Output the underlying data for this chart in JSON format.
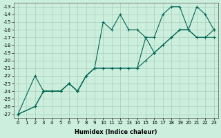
{
  "xlabel": "Humidex (Indice chaleur)",
  "ylabel": "",
  "bg_color": "#cceedd",
  "grid_color": "#aaccbb",
  "line_color": "#006655",
  "xlim": [
    -0.5,
    23.5
  ],
  "ylim": [
    -27.5,
    -12.5
  ],
  "xticks": [
    0,
    1,
    2,
    3,
    4,
    5,
    6,
    7,
    8,
    9,
    10,
    11,
    12,
    13,
    14,
    15,
    16,
    17,
    18,
    19,
    20,
    21,
    22,
    23
  ],
  "yticks": [
    -13,
    -14,
    -15,
    -16,
    -17,
    -18,
    -19,
    -20,
    -21,
    -22,
    -23,
    -24,
    -25,
    -26,
    -27
  ],
  "line1_x": [
    0,
    2,
    3,
    4,
    5,
    6,
    7,
    8,
    9,
    10,
    11,
    12,
    13,
    14,
    15,
    16,
    17,
    18,
    19,
    20,
    21,
    22,
    23
  ],
  "line1_y": [
    -27,
    -22,
    -24,
    -24,
    -24,
    -23,
    -24,
    -22,
    -21,
    -21,
    -21,
    -21,
    -21,
    -21,
    -20,
    -19,
    -18,
    -17,
    -16,
    -16,
    -17,
    -17,
    -17
  ],
  "line2_x": [
    0,
    2,
    3,
    4,
    5,
    6,
    7,
    8,
    9,
    10,
    11,
    12,
    13,
    14,
    15,
    16,
    17,
    18,
    19,
    20,
    21,
    22,
    23
  ],
  "line2_y": [
    -27,
    -26,
    -24,
    -24,
    -24,
    -23,
    -24,
    -22,
    -21,
    -15,
    -16,
    -14,
    -16,
    -16,
    -17,
    -17,
    -14,
    -13,
    -13,
    -16,
    -13,
    -14,
    -16
  ],
  "line3_x": [
    0,
    2,
    3,
    5,
    6,
    7,
    8,
    9,
    10,
    11,
    12,
    13,
    14,
    15,
    16,
    17,
    18,
    19,
    20,
    21,
    22,
    23
  ],
  "line3_y": [
    -27,
    -26,
    -24,
    -24,
    -23,
    -24,
    -22,
    -21,
    -21,
    -21,
    -21,
    -21,
    -21,
    -17,
    -19,
    -18,
    -17,
    -16,
    -16,
    -17,
    -17,
    -16
  ]
}
